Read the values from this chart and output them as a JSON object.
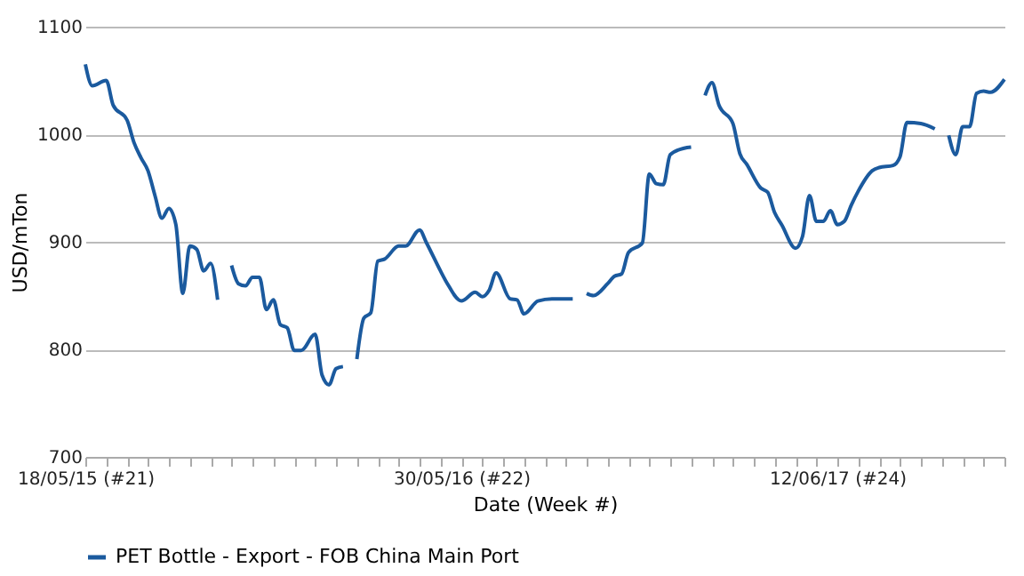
{
  "chart_data": {
    "type": "line",
    "xlabel": "Date (Week #)",
    "ylabel": "USD/mTon",
    "xlim": [
      "2015-05-18",
      "2017-11-27"
    ],
    "xticks": [
      {
        "value": "2015-05-18",
        "label": "18/05/15 (#21)"
      },
      {
        "value": "2015-06-08",
        "label": null
      },
      {
        "value": "2015-06-29",
        "label": null
      },
      {
        "value": "2015-07-20",
        "label": null
      },
      {
        "value": "2015-08-10",
        "label": null
      },
      {
        "value": "2015-08-31",
        "label": null
      },
      {
        "value": "2015-09-21",
        "label": null
      },
      {
        "value": "2015-10-12",
        "label": null
      },
      {
        "value": "2015-11-02",
        "label": null
      },
      {
        "value": "2015-11-23",
        "label": null
      },
      {
        "value": "2015-12-14",
        "label": null
      },
      {
        "value": "2016-01-04",
        "label": null
      },
      {
        "value": "2016-01-25",
        "label": null
      },
      {
        "value": "2016-02-15",
        "label": null
      },
      {
        "value": "2016-03-07",
        "label": null
      },
      {
        "value": "2016-03-28",
        "label": null
      },
      {
        "value": "2016-04-18",
        "label": null
      },
      {
        "value": "2016-05-09",
        "label": null
      },
      {
        "value": "2016-05-30",
        "label": "30/05/16 (#22)"
      },
      {
        "value": "2016-06-20",
        "label": null
      },
      {
        "value": "2016-07-11",
        "label": null
      },
      {
        "value": "2016-08-01",
        "label": null
      },
      {
        "value": "2016-08-22",
        "label": null
      },
      {
        "value": "2016-09-12",
        "label": null
      },
      {
        "value": "2016-10-03",
        "label": null
      },
      {
        "value": "2016-10-24",
        "label": null
      },
      {
        "value": "2016-11-14",
        "label": null
      },
      {
        "value": "2016-12-05",
        "label": null
      },
      {
        "value": "2016-12-26",
        "label": null
      },
      {
        "value": "2017-01-16",
        "label": null
      },
      {
        "value": "2017-02-06",
        "label": null
      },
      {
        "value": "2017-02-27",
        "label": null
      },
      {
        "value": "2017-03-20",
        "label": null
      },
      {
        "value": "2017-04-10",
        "label": null
      },
      {
        "value": "2017-05-01",
        "label": null
      },
      {
        "value": "2017-05-22",
        "label": null
      },
      {
        "value": "2017-06-12",
        "label": "12/06/17 (#24)"
      },
      {
        "value": "2017-07-03",
        "label": null
      },
      {
        "value": "2017-07-24",
        "label": null
      },
      {
        "value": "2017-08-14",
        "label": null
      },
      {
        "value": "2017-09-04",
        "label": null
      },
      {
        "value": "2017-09-25",
        "label": null
      },
      {
        "value": "2017-10-16",
        "label": null
      },
      {
        "value": "2017-11-06",
        "label": null
      },
      {
        "value": "2017-11-27",
        "label": null
      }
    ],
    "ylim": [
      700,
      1100
    ],
    "yticks": [
      700,
      800,
      900,
      1000,
      1100
    ],
    "grid": "y",
    "legend": "bottom",
    "marker": "none",
    "line_style": "solid",
    "x": [
      "2015-05-18",
      "2015-05-25",
      "2015-06-08",
      "2015-06-15",
      "2015-06-29",
      "2015-07-06",
      "2015-07-13",
      "2015-07-20",
      "2015-07-27",
      "2015-08-03",
      "2015-08-10",
      "2015-08-17",
      "2015-08-24",
      "2015-08-31",
      "2015-09-07",
      "2015-09-14",
      "2015-09-21",
      "2015-09-28",
      "2015-10-05",
      "2015-10-12",
      "2015-10-19",
      "2015-10-26",
      "2015-11-02",
      "2015-11-09",
      "2015-11-16",
      "2015-11-23",
      "2015-11-30",
      "2015-12-07",
      "2015-12-14",
      "2015-12-21",
      "2016-01-04",
      "2016-01-11",
      "2016-01-18",
      "2016-01-25",
      "2016-02-01",
      "2016-02-08",
      "2016-02-15",
      "2016-02-22",
      "2016-02-29",
      "2016-03-07",
      "2016-03-14",
      "2016-03-28",
      "2016-04-04",
      "2016-04-18",
      "2016-04-25",
      "2016-05-09",
      "2016-05-16",
      "2016-05-30",
      "2016-06-13",
      "2016-06-20",
      "2016-06-27",
      "2016-07-04",
      "2016-07-18",
      "2016-07-25",
      "2016-08-01",
      "2016-08-15",
      "2016-08-29",
      "2016-09-19",
      "2016-09-26",
      "2016-10-03",
      "2016-10-10",
      "2016-10-24",
      "2016-10-31",
      "2016-11-07",
      "2016-11-14",
      "2016-11-28",
      "2016-12-05",
      "2016-12-12",
      "2016-12-19",
      "2016-12-26",
      "2017-01-09",
      "2017-01-16",
      "2017-01-23",
      "2017-01-30",
      "2017-02-06",
      "2017-02-13",
      "2017-02-27",
      "2017-03-06",
      "2017-03-13",
      "2017-03-27",
      "2017-04-03",
      "2017-04-10",
      "2017-04-17",
      "2017-05-01",
      "2017-05-08",
      "2017-05-15",
      "2017-05-22",
      "2017-05-29",
      "2017-06-05",
      "2017-06-12",
      "2017-06-19",
      "2017-06-26",
      "2017-07-03",
      "2017-07-17",
      "2017-07-24",
      "2017-08-07",
      "2017-08-14",
      "2017-08-21",
      "2017-09-04",
      "2017-09-18",
      "2017-09-25",
      "2017-10-02",
      "2017-10-09",
      "2017-10-16",
      "2017-10-23",
      "2017-10-30",
      "2017-11-06",
      "2017-11-13",
      "2017-11-27"
    ],
    "series": [
      {
        "name": "PET Bottle - Export - FOB China Main Port",
        "color": "#1b5a9e",
        "values": [
          1065,
          1045,
          1050,
          1027,
          1013,
          992,
          978,
          966,
          943,
          922,
          931,
          916,
          852,
          896,
          893,
          873,
          880,
          846,
          null,
          878,
          861,
          859,
          867,
          867,
          837,
          846,
          823,
          820,
          799,
          799,
          814,
          776,
          767,
          782,
          784,
          null,
          791,
          829,
          834,
          882,
          884,
          896,
          896,
          911,
          899,
          873,
          861,
          845,
          853,
          849,
          855,
          871,
          847,
          846,
          833,
          845,
          847,
          847,
          null,
          852,
          850,
          861,
          868,
          870,
          890,
          899,
          963,
          954,
          953,
          981,
          987,
          988,
          null,
          1036,
          1048,
          1027,
          1010,
          982,
          972,
          950,
          946,
          927,
          916,
          894,
          905,
          943,
          919,
          919,
          929,
          916,
          919,
          934,
          947,
          966,
          969,
          971,
          979,
          1011,
          1010,
          1005,
          null,
          999,
          981,
          1007,
          1007,
          1038,
          1040,
          1039,
          1051
        ]
      }
    ]
  }
}
